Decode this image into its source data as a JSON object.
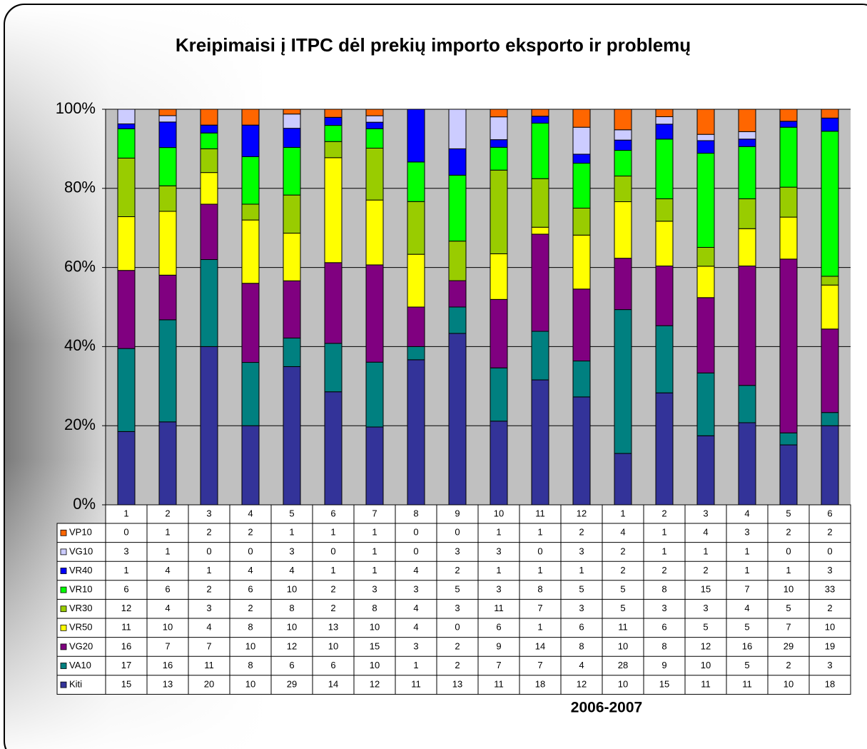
{
  "chart_data": {
    "type": "stacked_bar_100",
    "title": "Kreipimaisi į ITPC dėl prekių importo eksporto ir problemų",
    "x_label": "2006-2007",
    "categories": [
      "1",
      "2",
      "3",
      "4",
      "5",
      "6",
      "7",
      "8",
      "9",
      "10",
      "11",
      "12",
      "1",
      "2",
      "3",
      "4",
      "5",
      "6"
    ],
    "ylim": [
      0,
      100
    ],
    "yticks": [
      {
        "value": 0,
        "label": "0%"
      },
      {
        "value": 20,
        "label": "20%"
      },
      {
        "value": 40,
        "label": "40%"
      },
      {
        "value": 60,
        "label": "60%"
      },
      {
        "value": 80,
        "label": "80%"
      },
      {
        "value": 100,
        "label": "100%"
      }
    ],
    "grid": true,
    "series": [
      {
        "name": "Kiti",
        "color": "#333399",
        "values": [
          15,
          13,
          20,
          10,
          29,
          14,
          12,
          11,
          13,
          11,
          18,
          12,
          10,
          15,
          11,
          11,
          10,
          18
        ]
      },
      {
        "name": "VA10",
        "color": "#008080",
        "values": [
          17,
          16,
          11,
          8,
          6,
          6,
          10,
          1,
          2,
          7,
          7,
          4,
          28,
          9,
          10,
          5,
          2,
          3
        ]
      },
      {
        "name": "VG20",
        "color": "#800080",
        "values": [
          16,
          7,
          7,
          10,
          12,
          10,
          15,
          3,
          2,
          9,
          14,
          8,
          10,
          8,
          12,
          16,
          29,
          19
        ]
      },
      {
        "name": "VR50",
        "color": "#ffff00",
        "values": [
          11,
          10,
          4,
          8,
          10,
          13,
          10,
          4,
          0,
          6,
          1,
          6,
          11,
          6,
          5,
          5,
          7,
          10
        ]
      },
      {
        "name": "VR30",
        "color": "#99cc00",
        "values": [
          12,
          4,
          3,
          2,
          8,
          2,
          8,
          4,
          3,
          11,
          7,
          3,
          5,
          3,
          3,
          4,
          5,
          2
        ]
      },
      {
        "name": "VR10",
        "color": "#00ff00",
        "values": [
          6,
          6,
          2,
          6,
          10,
          2,
          3,
          3,
          5,
          3,
          8,
          5,
          5,
          8,
          15,
          7,
          10,
          33
        ]
      },
      {
        "name": "VR40",
        "color": "#0000ff",
        "values": [
          1,
          4,
          1,
          4,
          4,
          1,
          1,
          4,
          2,
          1,
          1,
          1,
          2,
          2,
          2,
          1,
          1,
          3
        ]
      },
      {
        "name": "VG10",
        "color": "#ccccff",
        "values": [
          3,
          1,
          0,
          0,
          3,
          0,
          1,
          0,
          3,
          3,
          0,
          3,
          2,
          1,
          1,
          1,
          0,
          0
        ]
      },
      {
        "name": "VP10",
        "color": "#ff6600",
        "values": [
          0,
          1,
          2,
          2,
          1,
          1,
          1,
          0,
          0,
          1,
          1,
          2,
          4,
          1,
          4,
          3,
          2,
          2
        ]
      }
    ]
  }
}
